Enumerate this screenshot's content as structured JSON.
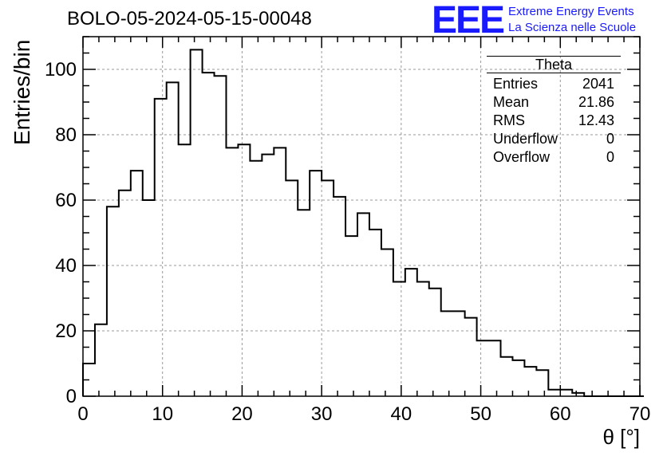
{
  "title": "BOLO-05-2024-05-15-00048",
  "logo": {
    "mark": "EEE",
    "line1": "Extreme Energy Events",
    "line2": "La Scienza nelle Scuole",
    "color": "#1a1aff"
  },
  "stats_box": {
    "title": "Theta",
    "rows": [
      {
        "label": "Entries",
        "value": "2041"
      },
      {
        "label": "Mean",
        "value": "21.86"
      },
      {
        "label": "RMS",
        "value": "12.43"
      },
      {
        "label": "Underflow",
        "value": "0"
      },
      {
        "label": "Overflow",
        "value": "0"
      }
    ]
  },
  "chart_data": {
    "type": "bar",
    "style": "step-histogram",
    "title": "BOLO-05-2024-05-15-00048",
    "xlabel": "θ [°]",
    "ylabel": "Entries/bin",
    "xlim": [
      0,
      70
    ],
    "ylim": [
      0,
      110
    ],
    "grid": true,
    "bin_width": 1.5,
    "x_ticks": [
      0,
      10,
      20,
      30,
      40,
      50,
      60,
      70
    ],
    "y_ticks": [
      0,
      20,
      40,
      60,
      80,
      100
    ],
    "values": [
      10,
      22,
      58,
      63,
      69,
      60,
      91,
      96,
      77,
      106,
      99,
      98,
      76,
      77,
      72,
      74,
      76,
      66,
      57,
      69,
      66,
      61,
      49,
      56,
      51,
      45,
      35,
      39,
      35,
      33,
      26,
      26,
      24,
      17,
      17,
      12,
      11,
      9,
      8,
      2,
      2,
      1,
      0,
      0,
      0,
      0,
      0
    ]
  }
}
